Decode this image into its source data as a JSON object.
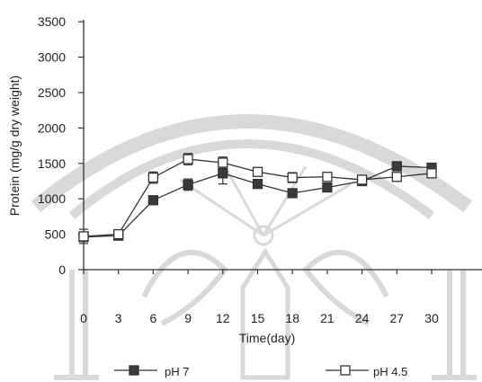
{
  "chart_data": {
    "type": "line",
    "xlabel": "Time(day)",
    "ylabel": "Protein (mg/g dry weight)",
    "x": [
      0,
      3,
      6,
      9,
      12,
      15,
      18,
      21,
      24,
      27,
      30
    ],
    "x_tick_labels": [
      "0",
      "3",
      "6",
      "9",
      "12",
      "15",
      "18",
      "21",
      "24",
      "27",
      "30"
    ],
    "y_ticks": [
      0,
      500,
      1000,
      1500,
      2000,
      2500,
      3000,
      3500
    ],
    "y_tick_labels": [
      "0",
      "500",
      "1000",
      "1500",
      "2000",
      "2500",
      "3000",
      "3500"
    ],
    "xlim": [
      0,
      30
    ],
    "ylim": [
      0,
      3500
    ],
    "legend_position": "bottom",
    "series": [
      {
        "name": "pH 7",
        "marker": "filled-square",
        "values": [
          460,
          480,
          980,
          1200,
          1360,
          1210,
          1080,
          1160,
          1250,
          1460,
          1440
        ],
        "errors": [
          0,
          0,
          0,
          80,
          150,
          0,
          0,
          0,
          60,
          0,
          0
        ]
      },
      {
        "name": "pH 4.5",
        "marker": "open-square",
        "values": [
          470,
          500,
          1300,
          1560,
          1510,
          1380,
          1300,
          1310,
          1270,
          1310,
          1360
        ],
        "errors": [
          100,
          0,
          80,
          80,
          80,
          60,
          70,
          60,
          0,
          0,
          0
        ]
      }
    ]
  }
}
